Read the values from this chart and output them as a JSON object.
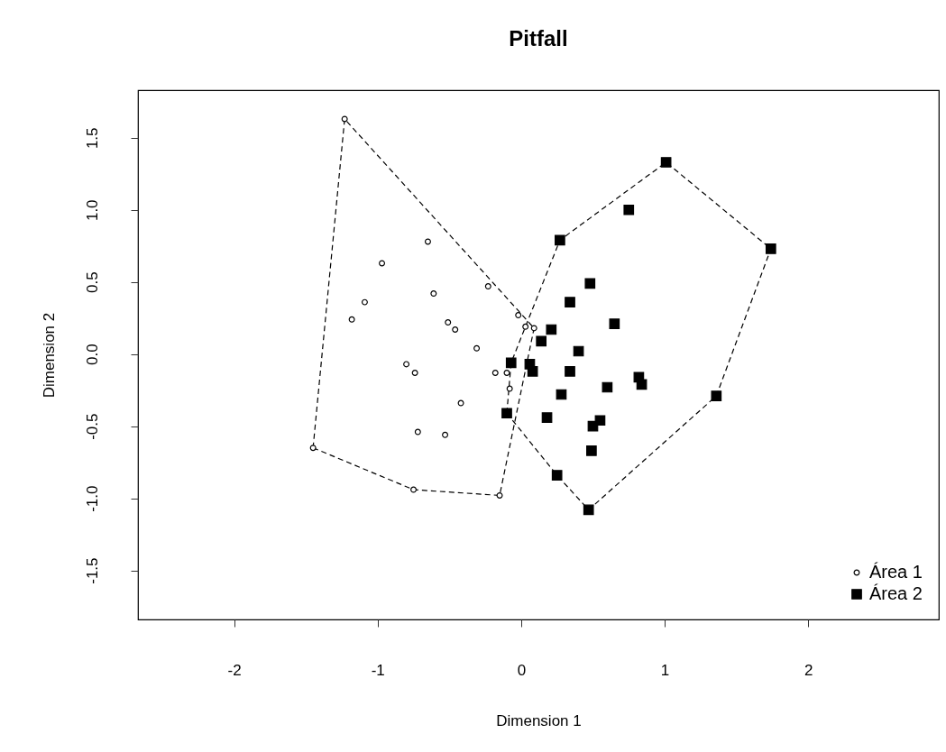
{
  "chart_data": {
    "type": "scatter",
    "title": "Pitfall",
    "xlabel": "Dimension 1",
    "ylabel": "Dimension 2",
    "xlim": [
      -2.67,
      2.91
    ],
    "ylim": [
      -1.84,
      1.83
    ],
    "xticks": [
      -2,
      -1,
      0,
      1,
      2
    ],
    "yticks": [
      -1.5,
      {
        "value": -1,
        "label": "-1.0"
      },
      -0.5,
      {
        "value": 0,
        "label": "0.0"
      },
      0.5,
      {
        "value": 1,
        "label": "1.0"
      },
      1.5
    ],
    "grid": false,
    "legend": "bottom right",
    "series": [
      {
        "name": "Área 1",
        "color": "#000000",
        "marker": "circle",
        "x": [
          -1.23,
          -0.65,
          -0.97,
          -0.23,
          -1.09,
          -0.61,
          -1.18,
          -0.51,
          -0.46,
          -0.31,
          -0.02,
          0.03,
          0.09,
          -0.8,
          -0.74,
          -0.18,
          -0.1,
          -0.08,
          -0.42,
          -0.72,
          -0.53,
          -1.45,
          -0.75,
          -0.15
        ],
        "values": [
          1.63,
          0.78,
          0.63,
          0.47,
          0.36,
          0.42,
          0.24,
          0.22,
          0.17,
          0.04,
          0.27,
          0.19,
          0.18,
          -0.07,
          -0.13,
          -0.13,
          -0.13,
          -0.24,
          -0.34,
          -0.54,
          -0.56,
          -0.65,
          -0.94,
          -0.98
        ]
      },
      {
        "name": "Área 2",
        "color": "#000000",
        "marker": "square",
        "x": [
          1.01,
          0.75,
          0.27,
          1.74,
          0.48,
          0.34,
          0.65,
          0.21,
          0.14,
          0.4,
          -0.07,
          0.06,
          0.08,
          0.34,
          0.82,
          0.84,
          0.6,
          0.28,
          1.36,
          -0.1,
          0.18,
          0.55,
          0.5,
          0.49,
          0.25,
          0.47
        ],
        "values": [
          1.33,
          1.0,
          0.79,
          0.73,
          0.49,
          0.36,
          0.21,
          0.17,
          0.09,
          0.02,
          -0.06,
          -0.07,
          -0.12,
          -0.12,
          -0.16,
          -0.21,
          -0.23,
          -0.28,
          -0.29,
          -0.41,
          -0.44,
          -0.46,
          -0.5,
          -0.67,
          -0.84,
          -1.08
        ]
      },
      {
        "type": "line",
        "color": "#000000",
        "line_style": "dashed",
        "marker": "none",
        "x": [
          -1.45,
          -1.23,
          0.09
        ],
        "values": [
          -0.65,
          1.63,
          0.18
        ]
      },
      {
        "type": "line",
        "color": "#000000",
        "line_style": "dashed",
        "marker": "none",
        "x": [
          -1.45,
          -0.75,
          -0.15,
          0.09
        ],
        "values": [
          -0.65,
          -0.94,
          -0.98,
          0.18
        ]
      },
      {
        "type": "line",
        "color": "#000000",
        "line_style": "dashed",
        "marker": "none",
        "x": [
          -0.1,
          -0.07,
          0.27,
          1.01,
          1.74
        ],
        "values": [
          -0.41,
          -0.06,
          0.79,
          1.33,
          0.73
        ]
      },
      {
        "type": "line",
        "color": "#000000",
        "line_style": "dashed",
        "marker": "none",
        "x": [
          -0.1,
          0.25,
          0.47,
          1.36,
          1.74
        ],
        "values": [
          -0.41,
          -0.84,
          -1.08,
          -0.29,
          0.73
        ]
      }
    ]
  }
}
